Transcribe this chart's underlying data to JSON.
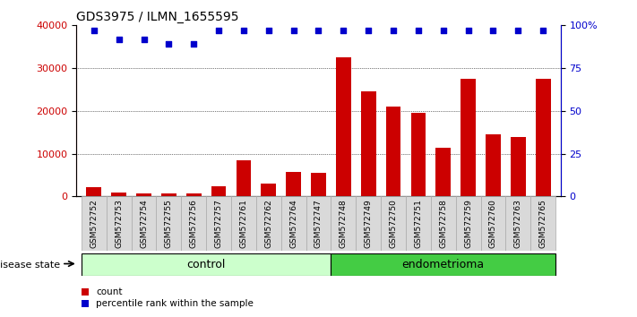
{
  "title": "GDS3975 / ILMN_1655595",
  "samples": [
    "GSM572752",
    "GSM572753",
    "GSM572754",
    "GSM572755",
    "GSM572756",
    "GSM572757",
    "GSM572761",
    "GSM572762",
    "GSM572764",
    "GSM572747",
    "GSM572748",
    "GSM572749",
    "GSM572750",
    "GSM572751",
    "GSM572758",
    "GSM572759",
    "GSM572760",
    "GSM572763",
    "GSM572765"
  ],
  "counts": [
    2200,
    900,
    800,
    800,
    800,
    2500,
    8500,
    3000,
    5800,
    5500,
    32500,
    24500,
    21000,
    19500,
    11500,
    27500,
    14500,
    14000,
    27500
  ],
  "percentile_pct": [
    97,
    92,
    92,
    89,
    89,
    97,
    97,
    97,
    97,
    97,
    97,
    97,
    97,
    97,
    97,
    97,
    97,
    97,
    97
  ],
  "control_count": 10,
  "endometrioma_count": 9,
  "control_label": "control",
  "endometrioma_label": "endometrioma",
  "disease_state_label": "disease state",
  "bar_color": "#cc0000",
  "dot_color": "#0000cc",
  "control_bg": "#ccffcc",
  "endo_bg": "#44cc44",
  "ylim_left": [
    0,
    40000
  ],
  "ylim_right": [
    0,
    100
  ],
  "yticks_left": [
    0,
    10000,
    20000,
    30000,
    40000
  ],
  "yticks_right": [
    0,
    25,
    50,
    75,
    100
  ],
  "legend_count_label": "count",
  "legend_pct_label": "percentile rank within the sample",
  "bar_width": 0.6,
  "title_fontsize": 10,
  "tick_fontsize": 7,
  "axis_label_color_left": "#cc0000",
  "axis_label_color_right": "#0000cc"
}
